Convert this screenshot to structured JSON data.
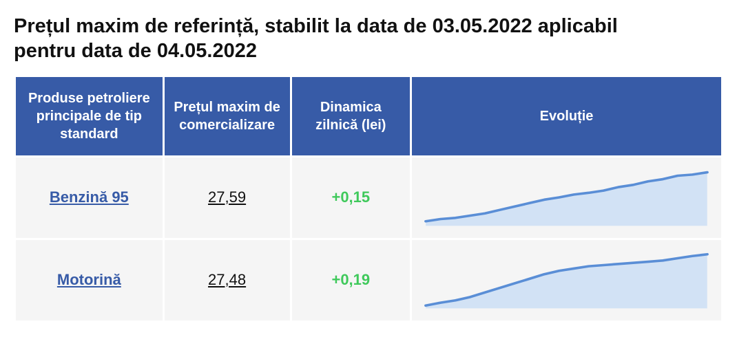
{
  "title": "Prețul maxim de referință, stabilit la data de 03.05.2022 aplicabil pentru data de 04.05.2022",
  "headers": {
    "product": "Produse petroliere principale de tip standard",
    "price": "Prețul maxim de comercializare",
    "delta": "Dinamica zilnică (lei)",
    "evolution": "Evoluție"
  },
  "rows": [
    {
      "product": "Benzină 95",
      "price": "27,59",
      "delta": "+0,15",
      "delta_sign": "positive",
      "spark": [
        8,
        12,
        14,
        18,
        22,
        28,
        34,
        40,
        46,
        50,
        55,
        58,
        62,
        68,
        72,
        78,
        82,
        88,
        90,
        94
      ]
    },
    {
      "product": "Motorină",
      "price": "27,48",
      "delta": "+0,19",
      "delta_sign": "positive",
      "spark": [
        5,
        10,
        14,
        20,
        28,
        36,
        44,
        52,
        60,
        66,
        70,
        74,
        76,
        78,
        80,
        82,
        84,
        88,
        92,
        95
      ]
    }
  ],
  "style": {
    "header_bg": "#375ba7",
    "header_text": "#ffffff",
    "cell_bg": "#f5f5f5",
    "border_color": "#ffffff",
    "link_color": "#375ba7",
    "positive_color": "#3fc95b",
    "spark_line_color": "#5a8ed6",
    "spark_fill_color": "#d2e2f5",
    "spark_line_width": 4,
    "title_color": "#111111"
  }
}
